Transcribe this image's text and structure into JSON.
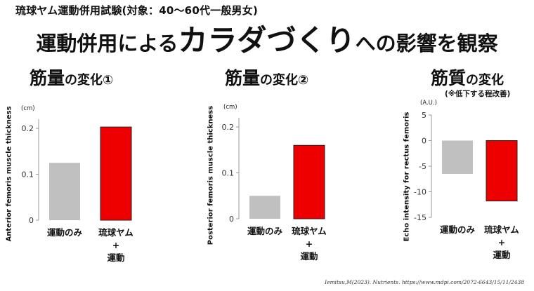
{
  "header": {
    "subtitle": "琉球ヤム運動併用試験(対象：40〜60代一般男女)",
    "headline_prefix": "運動併用による",
    "headline_emphasis": "カラダづくり",
    "headline_suffix": "への影響を観察"
  },
  "panels": [
    {
      "title_big": "筋量",
      "title_small": "の変化①",
      "note": "",
      "unit": "(cm)",
      "ylabel": "Anterior femoris muscle thickness"
    },
    {
      "title_big": "筋量",
      "title_small": "の変化②",
      "note": "",
      "unit": "(cm)",
      "ylabel": "Posterior femoris muscle thickness"
    },
    {
      "title_big": "筋質",
      "title_small": "の変化",
      "note": "(※低下する程改善)",
      "unit": "(A.U.)",
      "ylabel": "Echo intensity for rectus femoris"
    }
  ],
  "citation": "Iemitsu,M(2023). Nutrients. https://www.mdpi.com/2072-6643/15/11/2438",
  "colors": {
    "exercise_only": "#c0c0c0",
    "yam_plus_exercise": "#ee0000",
    "bar_edge": "#222222",
    "axis": "#999999"
  },
  "chart_data": [
    {
      "type": "bar",
      "categories": [
        [
          "運動のみ"
        ],
        [
          "琉球ヤム",
          "+",
          "運動"
        ]
      ],
      "values": [
        0.125,
        0.203
      ],
      "ylim": [
        0,
        0.22
      ],
      "yticks": [
        0,
        0.1,
        0.2
      ],
      "ytick_labels": [
        "0",
        "0.1",
        "0.2"
      ],
      "grid": false
    },
    {
      "type": "bar",
      "categories": [
        [
          "運動のみ"
        ],
        [
          "琉球ヤム",
          "+",
          "運動"
        ]
      ],
      "values": [
        0.05,
        0.16
      ],
      "ylim": [
        0,
        0.22
      ],
      "yticks": [
        0,
        0.1,
        0.2
      ],
      "ytick_labels": [
        "0",
        "0.1",
        "0.2"
      ],
      "grid": false
    },
    {
      "type": "bar",
      "categories": [
        [
          "運動のみ"
        ],
        [
          "琉球ヤム",
          "+",
          "運動"
        ]
      ],
      "values": [
        -6.5,
        -11.8
      ],
      "ylim": [
        -15,
        5
      ],
      "yticks": [
        5,
        0,
        -5,
        -10,
        -15
      ],
      "ytick_labels": [
        "5",
        "0",
        "-5",
        "-10",
        "-15"
      ],
      "grid": false
    }
  ]
}
